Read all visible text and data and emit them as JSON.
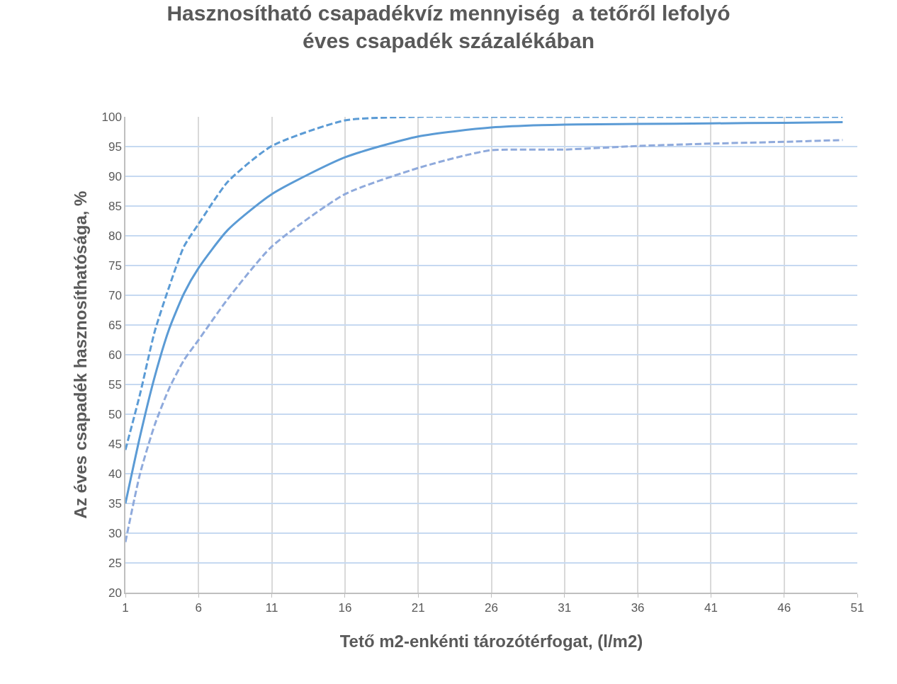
{
  "chart_data": {
    "type": "line",
    "title": "Hasznosítható csapadékvíz mennyiség  a tetőről lefolyó\néves csapadék százalékában",
    "xlabel": "Tető m2-enkénti tározótérfogat, (l/m2)",
    "ylabel": "Az éves csapadék hasznosíthatósága, %",
    "xlim": [
      1,
      51
    ],
    "xticks": [
      1,
      6,
      11,
      16,
      21,
      26,
      31,
      36,
      41,
      46,
      51
    ],
    "ylim": [
      20,
      100
    ],
    "yticks": [
      20,
      25,
      30,
      35,
      40,
      45,
      50,
      55,
      60,
      65,
      70,
      75,
      80,
      85,
      90,
      95,
      100
    ],
    "grid": true,
    "marker": "none",
    "series": [
      {
        "color": "#5b9bd5",
        "line_style": "dashed",
        "x": [
          1,
          2,
          3,
          4,
          5,
          6,
          8,
          11,
          16,
          21,
          26,
          31,
          36,
          41,
          46,
          50
        ],
        "values": [
          44,
          53.4,
          63.9,
          71.5,
          78.2,
          82,
          89.1,
          95.1,
          99.4,
          100,
          100,
          100,
          100,
          100,
          100,
          100
        ]
      },
      {
        "color": "#5b9bd5",
        "line_style": "solid",
        "x": [
          1,
          2,
          3,
          4,
          5,
          6,
          8,
          11,
          16,
          21,
          26,
          31,
          36,
          41,
          46,
          50
        ],
        "values": [
          35,
          46.3,
          56.3,
          64.4,
          70.3,
          74.6,
          81,
          87,
          93.2,
          96.7,
          98.2,
          98.7,
          98.8,
          98.9,
          99,
          99.1
        ]
      },
      {
        "color": "#8faadc",
        "line_style": "dashed",
        "x": [
          1,
          2,
          3,
          4,
          5,
          6,
          8,
          11,
          16,
          21,
          24,
          26,
          31,
          36,
          41,
          46,
          50
        ],
        "values": [
          28.5,
          40,
          48.2,
          54.4,
          59.1,
          62.5,
          69.4,
          78.2,
          87,
          91.4,
          93.4,
          94.4,
          94.5,
          95.1,
          95.5,
          95.8,
          96.1
        ]
      }
    ]
  }
}
